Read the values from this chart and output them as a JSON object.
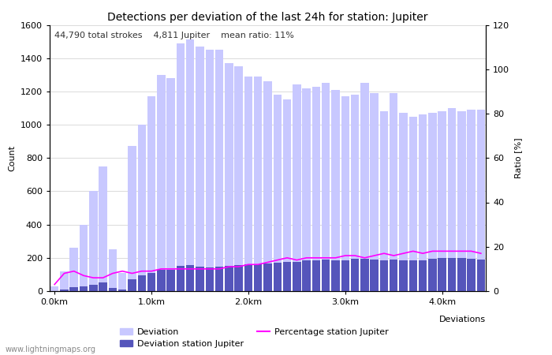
{
  "title": "Detections per deviation of the last 24h for station: Jupiter",
  "subtitle_parts": [
    "44,790 total strokes",
    "4,811 Jupiter",
    "mean ratio: 11%"
  ],
  "xlabel": "Deviations",
  "ylabel_left": "Count",
  "ylabel_right": "Ratio [%]",
  "x_tick_labels": [
    "0.0km",
    "1.0km",
    "2.0km",
    "3.0km",
    "4.0km"
  ],
  "x_tick_positions": [
    0,
    10,
    20,
    30,
    40
  ],
  "ylim_left": [
    0,
    1600
  ],
  "ylim_right": [
    0,
    120
  ],
  "yticks_left": [
    0,
    200,
    400,
    600,
    800,
    1000,
    1200,
    1400,
    1600
  ],
  "yticks_right": [
    0,
    20,
    40,
    60,
    80,
    100,
    120
  ],
  "bar_width": 0.85,
  "deviation_color": "#c8c8ff",
  "station_color": "#5555bb",
  "line_color": "#ff00ff",
  "background_color": "#ffffff",
  "grid_color": "#cccccc",
  "deviation_values": [
    30,
    120,
    260,
    400,
    600,
    750,
    250,
    110,
    870,
    1000,
    1170,
    1300,
    1280,
    1490,
    1510,
    1470,
    1450,
    1450,
    1370,
    1350,
    1290,
    1290,
    1260,
    1180,
    1150,
    1240,
    1220,
    1230,
    1250,
    1210,
    1170,
    1180,
    1250,
    1190,
    1080,
    1190,
    1070,
    1050,
    1060,
    1070,
    1080,
    1100,
    1080,
    1090,
    1090
  ],
  "station_values": [
    2,
    10,
    25,
    30,
    40,
    50,
    20,
    10,
    70,
    95,
    110,
    130,
    130,
    150,
    155,
    145,
    140,
    145,
    150,
    155,
    160,
    160,
    165,
    170,
    175,
    175,
    185,
    185,
    190,
    185,
    185,
    195,
    195,
    190,
    185,
    190,
    185,
    185,
    185,
    195,
    200,
    200,
    200,
    195,
    190
  ],
  "percentage_values": [
    3,
    8,
    9,
    7,
    6,
    6,
    8,
    9,
    8,
    9,
    9,
    10,
    10,
    10,
    10,
    10,
    10,
    10,
    11,
    11,
    12,
    12,
    13,
    14,
    15,
    14,
    15,
    15,
    15,
    15,
    16,
    16,
    15,
    16,
    17,
    16,
    17,
    18,
    17,
    18,
    18,
    18,
    18,
    18,
    17
  ],
  "legend_deviation_label": "Deviation",
  "legend_station_label": "Deviation station Jupiter",
  "legend_percentage_label": "Percentage station Jupiter",
  "watermark": "www.lightningmaps.org",
  "title_fontsize": 10,
  "subtitle_fontsize": 8,
  "tick_fontsize": 8,
  "label_fontsize": 8
}
